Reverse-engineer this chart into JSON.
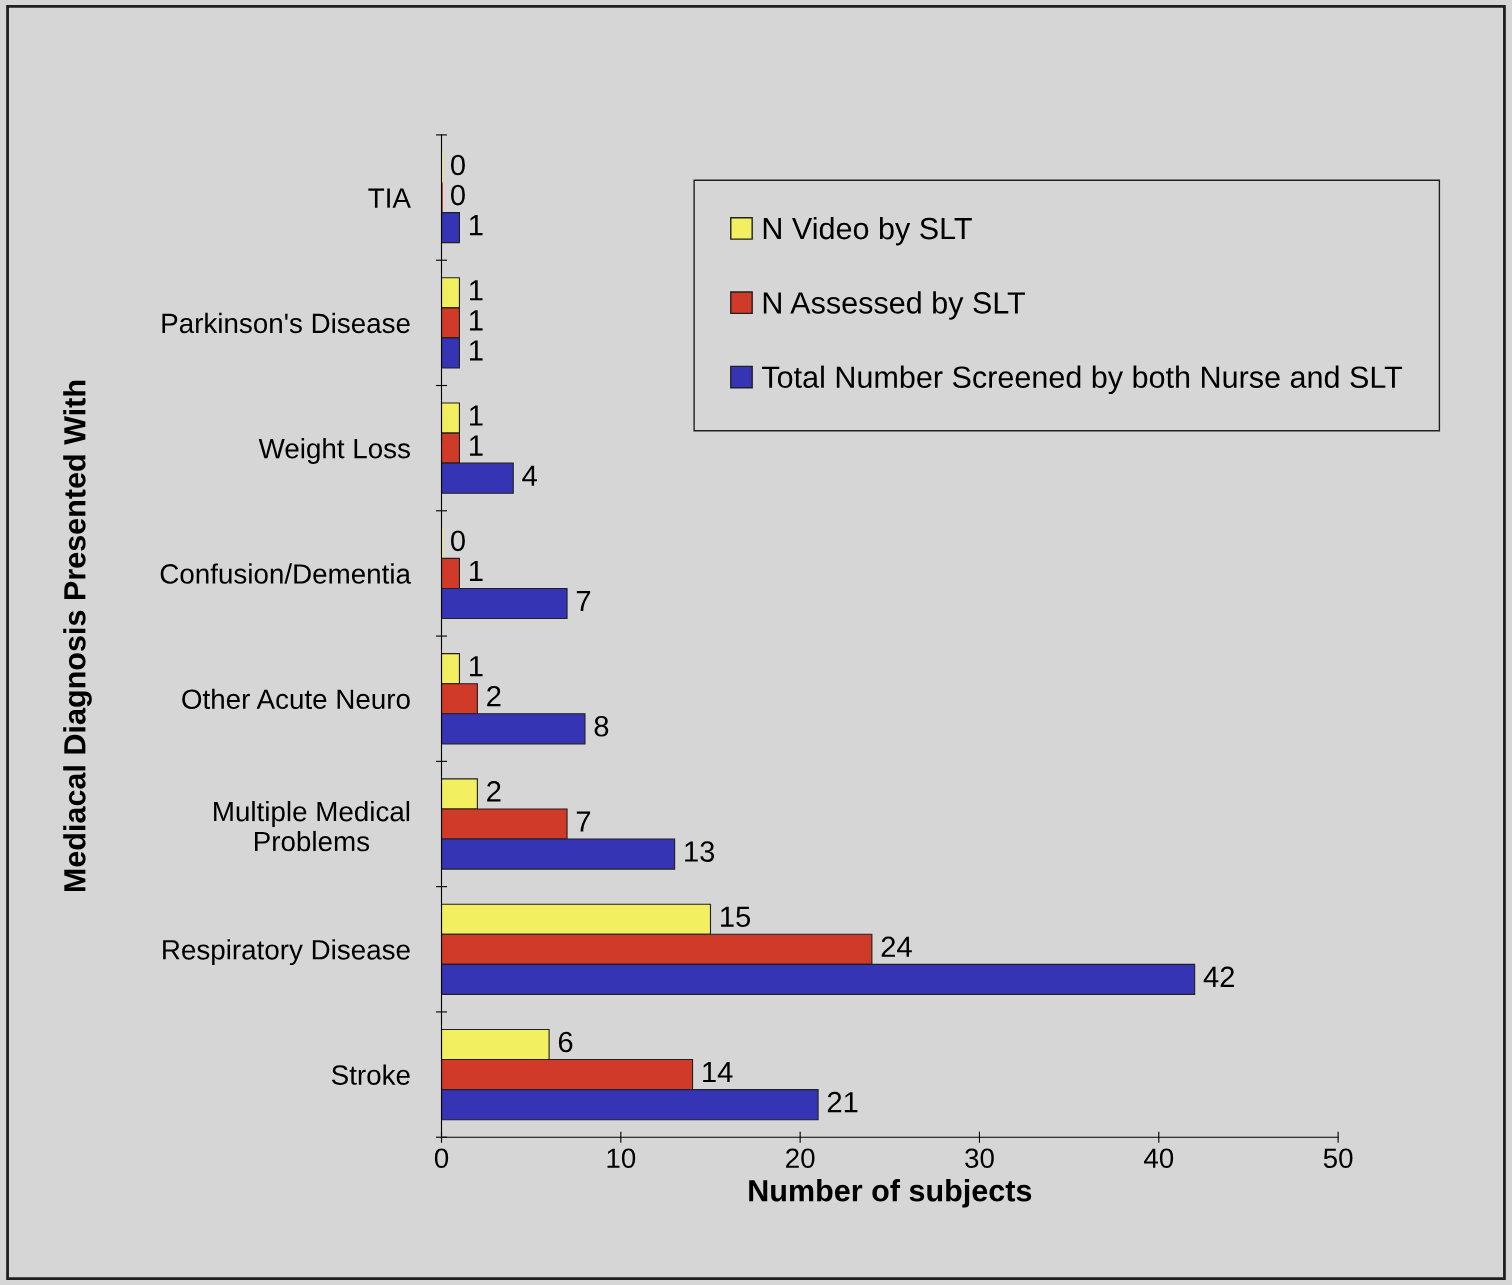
{
  "chart_data": {
    "type": "bar",
    "orientation": "horizontal",
    "xlabel": "Number of subjects",
    "ylabel": "Mediacal Diagnosis Presented With",
    "categories": [
      "TIA",
      "Parkinson's Disease",
      "Weight Loss",
      "Confusion/Dementia",
      "Other Acute Neuro",
      "Multiple Medical\nProblems",
      "Respiratory Disease",
      "Stroke"
    ],
    "series": [
      {
        "name": "N Video by SLT",
        "color": "#f2f060",
        "values": [
          0,
          1,
          1,
          0,
          1,
          2,
          15,
          6
        ]
      },
      {
        "name": "N Assessed by SLT",
        "color": "#d03a28",
        "values": [
          0,
          1,
          1,
          1,
          2,
          7,
          24,
          14
        ]
      },
      {
        "name": "Total Number Screened by both Nurse and SLT",
        "color": "#3434b4",
        "values": [
          1,
          1,
          4,
          7,
          8,
          13,
          42,
          21
        ]
      }
    ],
    "xlim": [
      0,
      50
    ],
    "xticks": [
      0,
      10,
      20,
      30,
      40,
      50
    ],
    "grid": false,
    "legend": "top right",
    "data_labels": true
  }
}
